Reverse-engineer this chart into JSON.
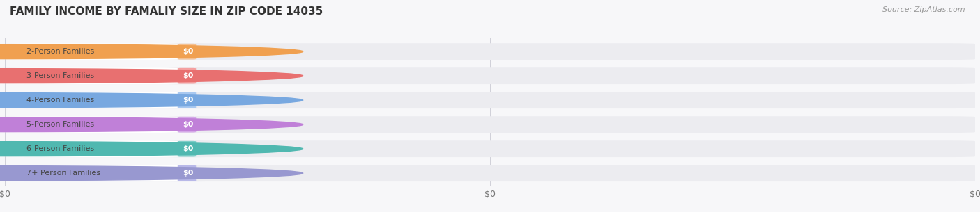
{
  "title": "FAMILY INCOME BY FAMALIY SIZE IN ZIP CODE 14035",
  "source": "Source: ZipAtlas.com",
  "categories": [
    "2-Person Families",
    "3-Person Families",
    "4-Person Families",
    "5-Person Families",
    "6-Person Families",
    "7+ Person Families"
  ],
  "values": [
    0,
    0,
    0,
    0,
    0,
    0
  ],
  "bar_colors": [
    "#f5c090",
    "#f5a0a0",
    "#a8c8f0",
    "#d4a8e8",
    "#7ecec8",
    "#b8b8e8"
  ],
  "dot_colors": [
    "#f0a050",
    "#e87070",
    "#78a8e0",
    "#c080d8",
    "#50b8b0",
    "#9898d0"
  ],
  "bg_color": "#f7f7f9",
  "bar_bg_color": "#ececf0",
  "bar_white_color": "#ffffff",
  "label_color": "#444444",
  "value_label_color": "#ffffff",
  "title_color": "#333333",
  "source_color": "#999999",
  "bar_height": 0.68,
  "colored_portion": 0.185,
  "xlim_max": 1.0,
  "xticks": [
    0.0,
    0.5,
    1.0
  ],
  "xtick_labels": [
    "$0",
    "$0",
    "$0"
  ],
  "gridline_color": "#d0d0d8",
  "title_fontsize": 11,
  "label_fontsize": 8,
  "source_fontsize": 8
}
